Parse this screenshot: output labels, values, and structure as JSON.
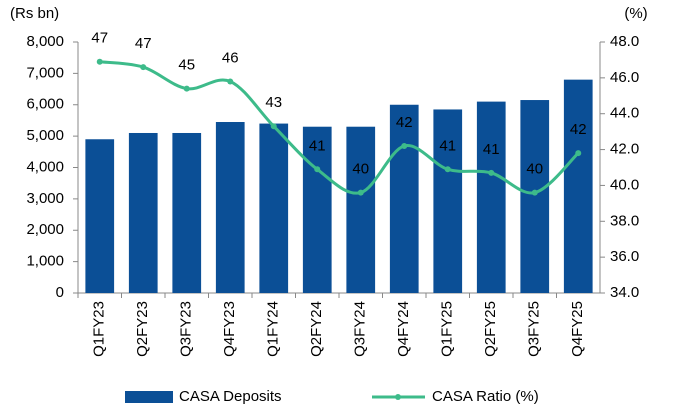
{
  "chart_data": {
    "type": "bar-line",
    "ylabel": "(Rs bn)",
    "y2label": "(%)",
    "categories": [
      "Q1FY23",
      "Q2FY23",
      "Q3FY23",
      "Q4FY23",
      "Q1FY24",
      "Q2FY24",
      "Q3FY24",
      "Q4FY24",
      "Q1FY25",
      "Q2FY25",
      "Q3FY25",
      "Q4FY25"
    ],
    "series": [
      {
        "name": "CASA Deposits",
        "type": "bar",
        "color": "#0b4f96",
        "values": [
          4900,
          5100,
          5100,
          5450,
          5400,
          5300,
          5300,
          6000,
          5850,
          6100,
          6150,
          6800
        ]
      },
      {
        "name": "CASA Ratio (%)",
        "type": "line",
        "axis": "y2",
        "color": "#3dbb8a",
        "values": [
          46.9,
          46.6,
          45.4,
          45.8,
          43.3,
          40.9,
          39.6,
          42.2,
          40.9,
          40.7,
          39.6,
          41.8
        ],
        "value_labels": [
          "47",
          "47",
          "45",
          "46",
          "43",
          "41",
          "40",
          "42",
          "41",
          "41",
          "40",
          "42"
        ]
      }
    ],
    "ylim": [
      0,
      8000
    ],
    "yticks": [
      0,
      {
        "value": 1000,
        "label": "1,000"
      },
      {
        "value": 2000,
        "label": "2,000"
      },
      {
        "value": 3000,
        "label": "3,000"
      },
      {
        "value": 4000,
        "label": "4,000"
      },
      {
        "value": 5000,
        "label": "5,000"
      },
      {
        "value": 6000,
        "label": "6,000"
      },
      {
        "value": 7000,
        "label": "7,000"
      },
      {
        "value": 8000,
        "label": "8,000"
      }
    ],
    "y2lim": [
      34,
      48
    ],
    "y2ticks": [
      {
        "value": 34,
        "label": "34.0"
      },
      {
        "value": 36,
        "label": "36.0"
      },
      {
        "value": 38,
        "label": "38.0"
      },
      {
        "value": 40,
        "label": "40.0"
      },
      {
        "value": 42,
        "label": "42.0"
      },
      {
        "value": 44,
        "label": "44.0"
      },
      {
        "value": 46,
        "label": "46.0"
      },
      {
        "value": 48,
        "label": "48.0"
      }
    ],
    "grid": false,
    "legend": "bottom"
  }
}
